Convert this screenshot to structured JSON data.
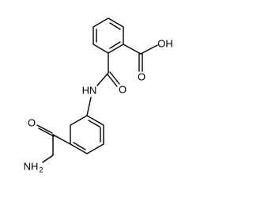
{
  "labels": {
    "acid_oh": "OH",
    "acid_o": "O",
    "amide_o": "O",
    "amide_nh": "HN",
    "carboxamide_o": "O",
    "carboxamide_n": "NH",
    "carboxamide_n_sub": "2"
  }
}
